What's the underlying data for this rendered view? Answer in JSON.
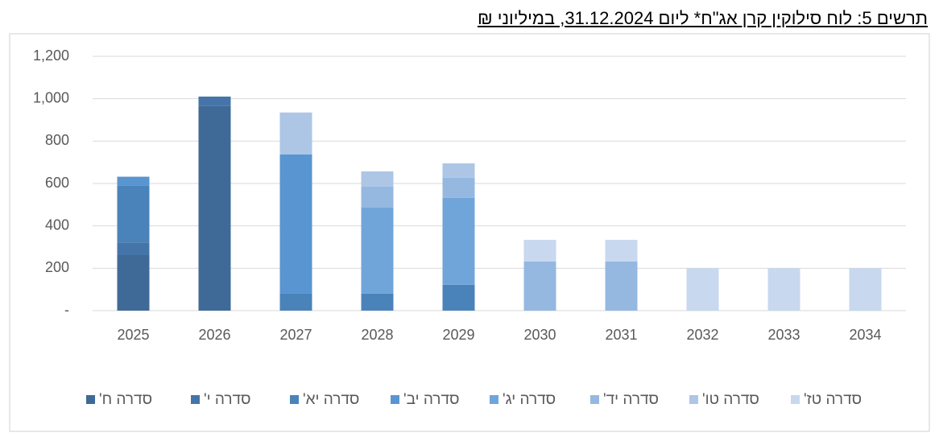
{
  "chart_data": {
    "type": "stacked-bar",
    "title": "תרשים 5: לוח סילוקין קרן אג\"ח* ליום 31.12.2024, במיליוני ₪",
    "categories": [
      "2025",
      "2026",
      "2027",
      "2028",
      "2029",
      "2030",
      "2031",
      "2032",
      "2033",
      "2034"
    ],
    "series": [
      {
        "name": "סדרה ח'",
        "color": "#3f6a97",
        "values": [
          262,
          965,
          null,
          null,
          null,
          null,
          null,
          null,
          null,
          null
        ]
      },
      {
        "name": "סדרה י'",
        "color": "#4575a8",
        "values": [
          60,
          45,
          null,
          null,
          null,
          null,
          null,
          null,
          null,
          null
        ]
      },
      {
        "name": "סדרה יא'",
        "color": "#4a83ba",
        "values": [
          268,
          null,
          80,
          80,
          122,
          null,
          null,
          null,
          null,
          null
        ]
      },
      {
        "name": "סדרה יב'",
        "color": "#5995d0",
        "values": [
          42,
          null,
          657,
          null,
          null,
          null,
          null,
          null,
          null,
          null
        ]
      },
      {
        "name": "סדרה יג'",
        "color": "#70a5da",
        "values": [
          null,
          null,
          null,
          406,
          410,
          null,
          null,
          null,
          null,
          null
        ]
      },
      {
        "name": "סדרה יד'",
        "color": "#95b8e0",
        "values": [
          null,
          null,
          null,
          99,
          95,
          232,
          232,
          null,
          null,
          null
        ]
      },
      {
        "name": "סדרה טו'",
        "color": "#adc6e5",
        "values": [
          null,
          null,
          198,
          72,
          68,
          null,
          null,
          null,
          null,
          null
        ]
      },
      {
        "name": "סדרה טז'",
        "color": "#c7d8ef",
        "values": [
          null,
          null,
          null,
          null,
          null,
          102,
          102,
          200,
          200,
          200
        ]
      }
    ],
    "ylim": [
      0,
      1200
    ],
    "yticks": [
      {
        "value": 0,
        "label": "-"
      },
      200,
      400,
      600,
      800,
      {
        "value": 1000,
        "label": "1,000"
      },
      {
        "value": 1200,
        "label": "1,200"
      }
    ],
    "grid": true
  }
}
